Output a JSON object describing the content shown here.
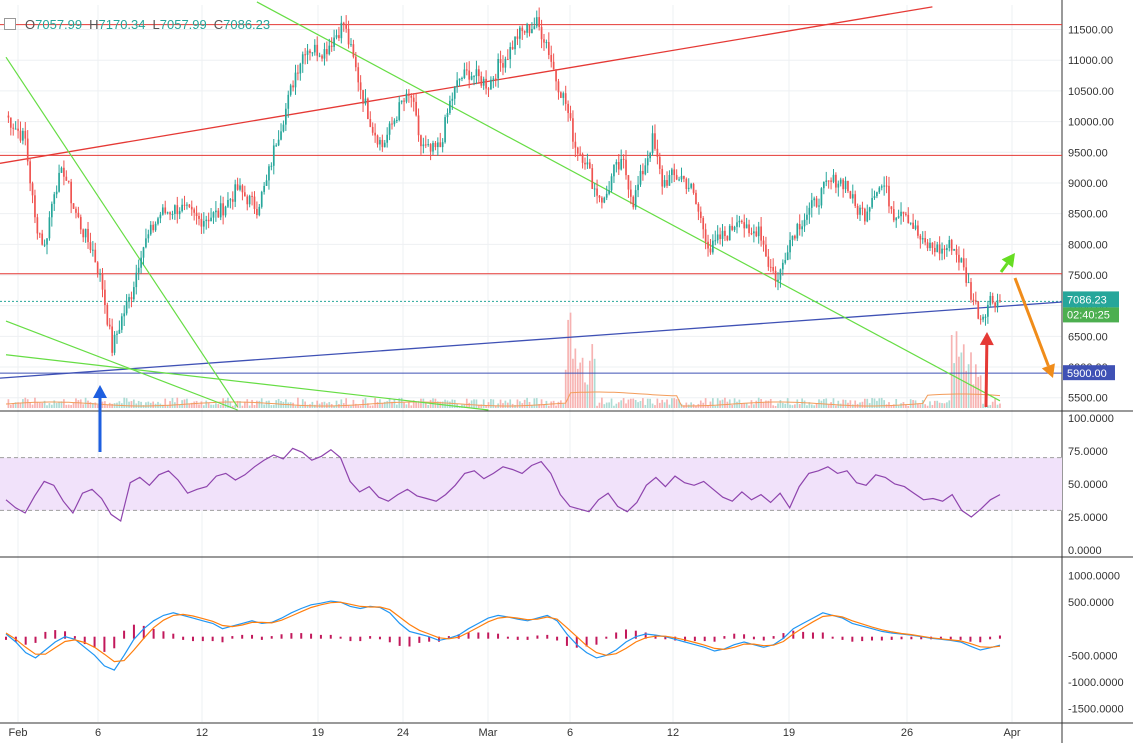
{
  "ohlc_legend": {
    "open_key": "O",
    "open": "7057.99",
    "high_key": "H",
    "high": "7170.34",
    "low_key": "L",
    "low": "7057.99",
    "close_key": "C",
    "close": "7086.23"
  },
  "price_tag": {
    "value": "7086.23",
    "countdown": "02:40:25"
  },
  "support_tag": "5900.00",
  "colors": {
    "up": "#26a69a",
    "down": "#ef5350",
    "hline": "#e53935",
    "blue_line": "#3f51b5",
    "green_line": "#66dd44",
    "rsi": "#8e44ad",
    "rsi_band": "#f1e2fa",
    "macd": "#2196f3",
    "signal": "#ff7f0e",
    "hist": "#c2185b",
    "arrow_blue": "#1e5fe0",
    "arrow_red": "#e53935",
    "arrow_green": "#66dd22",
    "arrow_orange": "#f08c1a"
  },
  "chart_data": [
    {
      "type": "candlestick",
      "title": "",
      "x_ticks": [
        "Feb",
        "6",
        "12",
        "19",
        "24",
        "Mar",
        "6",
        "12",
        "19",
        "26",
        "Apr"
      ],
      "y_ticks": [
        "11500.00",
        "11000.00",
        "10500.00",
        "10000.00",
        "9500.00",
        "9000.00",
        "8500.00",
        "8000.00",
        "7500.00",
        "7000.00",
        "6500.00",
        "6000.00",
        "5500.00"
      ],
      "ylim": [
        5300,
        11900
      ],
      "anchors": [
        {
          "d": 0,
          "p": 10100
        },
        {
          "d": 2,
          "p": 9700
        },
        {
          "d": 3,
          "p": 8400
        },
        {
          "d": 4,
          "p": 7950
        },
        {
          "d": 5,
          "p": 8900
        },
        {
          "d": 6,
          "p": 9200
        },
        {
          "d": 7,
          "p": 8600
        },
        {
          "d": 8,
          "p": 8200
        },
        {
          "d": 9,
          "p": 7900
        },
        {
          "d": 10,
          "p": 7300
        },
        {
          "d": 11,
          "p": 6300
        },
        {
          "d": 12,
          "p": 6800
        },
        {
          "d": 13,
          "p": 7200
        },
        {
          "d": 14,
          "p": 7900
        },
        {
          "d": 16,
          "p": 8500
        },
        {
          "d": 18,
          "p": 8600
        },
        {
          "d": 20,
          "p": 8400
        },
        {
          "d": 22,
          "p": 8500
        },
        {
          "d": 24,
          "p": 8900
        },
        {
          "d": 26,
          "p": 8600
        },
        {
          "d": 27,
          "p": 9000
        },
        {
          "d": 28,
          "p": 9700
        },
        {
          "d": 29,
          "p": 10200
        },
        {
          "d": 30,
          "p": 10800
        },
        {
          "d": 31,
          "p": 11200
        },
        {
          "d": 33,
          "p": 11150
        },
        {
          "d": 35,
          "p": 11600
        },
        {
          "d": 36,
          "p": 11000
        },
        {
          "d": 37,
          "p": 10400
        },
        {
          "d": 38,
          "p": 9900
        },
        {
          "d": 39,
          "p": 9600
        },
        {
          "d": 41,
          "p": 10300
        },
        {
          "d": 42,
          "p": 10400
        },
        {
          "d": 43,
          "p": 9600
        },
        {
          "d": 44,
          "p": 9500
        },
        {
          "d": 45,
          "p": 9600
        },
        {
          "d": 46,
          "p": 10300
        },
        {
          "d": 47,
          "p": 10700
        },
        {
          "d": 48,
          "p": 10800
        },
        {
          "d": 50,
          "p": 10600
        },
        {
          "d": 51,
          "p": 10900
        },
        {
          "d": 52,
          "p": 11100
        },
        {
          "d": 53,
          "p": 11400
        },
        {
          "d": 55,
          "p": 11600
        },
        {
          "d": 56,
          "p": 11300
        },
        {
          "d": 57,
          "p": 10700
        },
        {
          "d": 58,
          "p": 10300
        },
        {
          "d": 59,
          "p": 9600
        },
        {
          "d": 60,
          "p": 9400
        },
        {
          "d": 61,
          "p": 8900
        },
        {
          "d": 62,
          "p": 8700
        },
        {
          "d": 63,
          "p": 9200
        },
        {
          "d": 64,
          "p": 9300
        },
        {
          "d": 65,
          "p": 8700
        },
        {
          "d": 66,
          "p": 9200
        },
        {
          "d": 67,
          "p": 9700
        },
        {
          "d": 68,
          "p": 9000
        },
        {
          "d": 69,
          "p": 9100
        },
        {
          "d": 70,
          "p": 9100
        },
        {
          "d": 71,
          "p": 8900
        },
        {
          "d": 72,
          "p": 8400
        },
        {
          "d": 73,
          "p": 7900
        },
        {
          "d": 74,
          "p": 8100
        },
        {
          "d": 75,
          "p": 8200
        },
        {
          "d": 76,
          "p": 8500
        },
        {
          "d": 77,
          "p": 8100
        },
        {
          "d": 78,
          "p": 8300
        },
        {
          "d": 79,
          "p": 7700
        },
        {
          "d": 80,
          "p": 7400
        },
        {
          "d": 81,
          "p": 8000
        },
        {
          "d": 82,
          "p": 8300
        },
        {
          "d": 83,
          "p": 8500
        },
        {
          "d": 84,
          "p": 8700
        },
        {
          "d": 85,
          "p": 8950
        },
        {
          "d": 86,
          "p": 9050
        },
        {
          "d": 87,
          "p": 9000
        },
        {
          "d": 88,
          "p": 8600
        },
        {
          "d": 89,
          "p": 8500
        },
        {
          "d": 90,
          "p": 8900
        },
        {
          "d": 91,
          "p": 8950
        },
        {
          "d": 92,
          "p": 8500
        },
        {
          "d": 93,
          "p": 8600
        },
        {
          "d": 94,
          "p": 8300
        },
        {
          "d": 95,
          "p": 8000
        },
        {
          "d": 96,
          "p": 7950
        },
        {
          "d": 97,
          "p": 7900
        },
        {
          "d": 98,
          "p": 8000
        },
        {
          "d": 99,
          "p": 7700
        },
        {
          "d": 100,
          "p": 7200
        },
        {
          "d": 101,
          "p": 6800
        },
        {
          "d": 102,
          "p": 7100
        },
        {
          "d": 103,
          "p": 7086
        }
      ],
      "price_lines": [
        11580,
        9450,
        7520,
        5900
      ],
      "volume_max": 1,
      "volume_spikes": [
        {
          "d": 59,
          "v": 1.0
        },
        {
          "d": 60,
          "v": 0.6
        },
        {
          "d": 99,
          "v": 0.95
        },
        {
          "d": 100,
          "v": 0.6
        }
      ]
    },
    {
      "type": "line",
      "title": "",
      "y_ticks": [
        "100.0000",
        "75.0000",
        "50.0000",
        "25.0000",
        "0.0000"
      ],
      "ylim": [
        0,
        100
      ],
      "band": [
        30,
        70
      ],
      "series": [
        {
          "values": [
            38,
            32,
            28,
            41,
            52,
            49,
            37,
            28,
            43,
            46,
            39,
            27,
            22,
            51,
            55,
            49,
            57,
            60,
            53,
            43,
            46,
            48,
            56,
            58,
            53,
            57,
            63,
            68,
            72,
            69,
            77,
            74,
            68,
            71,
            76,
            70,
            52,
            44,
            48,
            40,
            37,
            42,
            46,
            41,
            39,
            37,
            42,
            49,
            58,
            60,
            54,
            58,
            63,
            61,
            58,
            64,
            67,
            58,
            42,
            33,
            31,
            29,
            38,
            43,
            33,
            29,
            36,
            49,
            55,
            48,
            56,
            51,
            49,
            52,
            46,
            40,
            37,
            44,
            38,
            42,
            36,
            43,
            32,
            48,
            58,
            60,
            63,
            58,
            60,
            51,
            49,
            57,
            55,
            50,
            48,
            43,
            38,
            39,
            37,
            42,
            30,
            25,
            31,
            38,
            42
          ]
        }
      ]
    },
    {
      "type": "line",
      "title": "",
      "y_ticks": [
        "1000.0000",
        "500.0000",
        "-500.0000",
        "-1000.0000",
        "-1500.0000"
      ],
      "ylim": [
        -1700,
        1200
      ],
      "series": [
        {
          "values": [
            -100,
            -250,
            -450,
            -550,
            -400,
            -250,
            -150,
            -200,
            -350,
            -500,
            -700,
            -780,
            -500,
            -200,
            0,
            150,
            250,
            300,
            250,
            200,
            150,
            100,
            0,
            50,
            100,
            150,
            100,
            120,
            200,
            300,
            380,
            450,
            480,
            520,
            500,
            420,
            380,
            420,
            400,
            300,
            100,
            -50,
            -100,
            -150,
            -220,
            -180,
            -120,
            0,
            100,
            200,
            250,
            220,
            180,
            150,
            200,
            250,
            150,
            -100,
            -300,
            -450,
            -550,
            -500,
            -400,
            -250,
            -150,
            -100,
            -120,
            -150,
            -200,
            -250,
            -300,
            -350,
            -420,
            -380,
            -300,
            -250,
            -300,
            -350,
            -300,
            -180,
            0,
            100,
            200,
            300,
            250,
            200,
            100,
            50,
            0,
            -50,
            -80,
            -100,
            -120,
            -150,
            -180,
            -200,
            -220,
            -250,
            -330,
            -400,
            -360,
            -310
          ]
        },
        {
          "values": [
            -80,
            -200,
            -350,
            -480,
            -480,
            -360,
            -240,
            -210,
            -260,
            -350,
            -480,
            -620,
            -600,
            -400,
            -180,
            20,
            160,
            250,
            270,
            240,
            190,
            140,
            60,
            40,
            70,
            120,
            120,
            110,
            160,
            240,
            320,
            400,
            450,
            490,
            500,
            460,
            420,
            410,
            410,
            360,
            220,
            80,
            -30,
            -100,
            -170,
            -190,
            -160,
            -70,
            30,
            130,
            200,
            220,
            200,
            170,
            180,
            220,
            180,
            20,
            -150,
            -320,
            -450,
            -500,
            -470,
            -370,
            -250,
            -170,
            -140,
            -140,
            -170,
            -210,
            -260,
            -310,
            -370,
            -390,
            -350,
            -290,
            -290,
            -320,
            -310,
            -240,
            -100,
            20,
            130,
            230,
            250,
            220,
            150,
            90,
            30,
            -20,
            -60,
            -90,
            -110,
            -140,
            -170,
            -190,
            -210,
            -230,
            -280,
            -340,
            -350,
            -330
          ]
        }
      ]
    }
  ]
}
